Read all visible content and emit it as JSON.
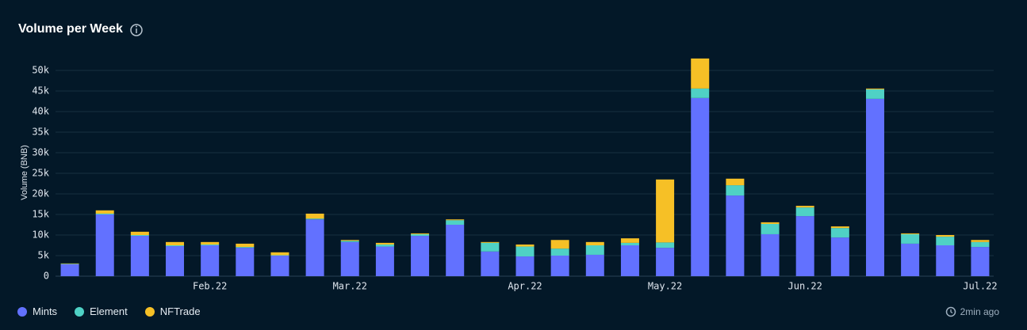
{
  "header": {
    "title": "Volume per Week",
    "updated": "2min ago"
  },
  "chart_data": {
    "type": "bar",
    "stacked": true,
    "y_label": "Volume (BNB)",
    "categories": [
      null,
      null,
      null,
      null,
      "Feb.22",
      null,
      null,
      null,
      "Mar.22",
      null,
      null,
      null,
      null,
      "Apr.22",
      null,
      null,
      null,
      "May.22",
      null,
      null,
      null,
      "Jun.22",
      null,
      null,
      null,
      null,
      "Jul.22"
    ],
    "series": [
      {
        "name": "Mints",
        "color": "#6271ff",
        "values": [
          2900,
          15000,
          9800,
          7300,
          7500,
          6900,
          5000,
          13800,
          8300,
          7200,
          9800,
          12500,
          6000,
          4800,
          5000,
          5200,
          7500,
          6900,
          43300,
          19600,
          10200,
          14600,
          9400,
          43100,
          7900,
          7500,
          7100
        ]
      },
      {
        "name": "Element",
        "color": "#4fd1c5",
        "values": [
          100,
          200,
          200,
          200,
          200,
          200,
          100,
          200,
          300,
          500,
          400,
          1100,
          2100,
          2400,
          1700,
          2300,
          600,
          1300,
          2300,
          2500,
          2500,
          2100,
          2300,
          2300,
          2300,
          2100,
          1200
        ]
      },
      {
        "name": "NFTrade",
        "color": "#f6c026",
        "values": [
          100,
          800,
          800,
          800,
          600,
          800,
          700,
          1200,
          200,
          400,
          200,
          200,
          200,
          500,
          2100,
          800,
          1100,
          15300,
          7300,
          1600,
          400,
          400,
          400,
          200,
          200,
          400,
          500
        ]
      }
    ],
    "ylim": [
      0,
      55000
    ],
    "yticks": [
      0,
      {
        "value": 5000,
        "label": "5k"
      },
      {
        "value": 10000,
        "label": "10k"
      },
      {
        "value": 15000,
        "label": "15k"
      },
      {
        "value": 20000,
        "label": "20k"
      },
      {
        "value": 25000,
        "label": "25k"
      },
      {
        "value": 30000,
        "label": "30k"
      },
      {
        "value": 35000,
        "label": "35k"
      },
      {
        "value": 40000,
        "label": "40k"
      },
      {
        "value": 45000,
        "label": "45k"
      },
      {
        "value": 50000,
        "label": "50k"
      }
    ],
    "grid": true
  }
}
